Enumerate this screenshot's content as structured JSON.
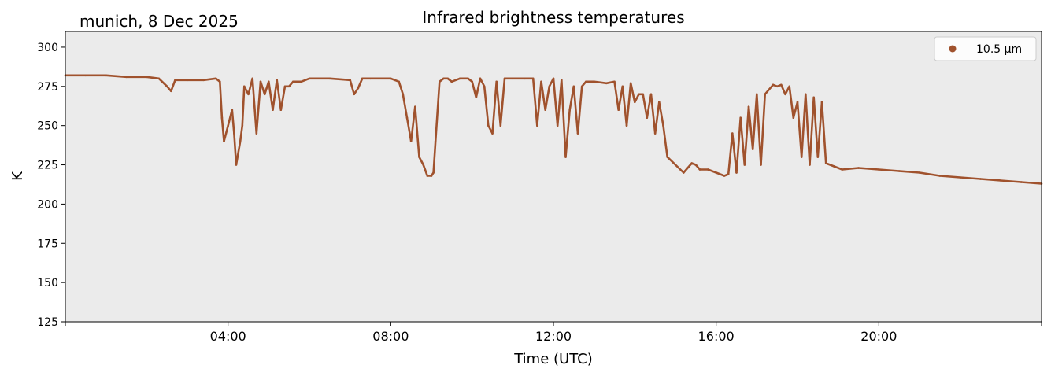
{
  "chart_data": {
    "type": "line",
    "title": "Infrared brightness temperatures",
    "location_label": "munich, 8 Dec 2025",
    "xlabel": "Time (UTC)",
    "ylabel": "K",
    "xlim_hours": [
      0,
      24
    ],
    "ylim": [
      125,
      310
    ],
    "yticks": [
      125,
      150,
      175,
      200,
      225,
      250,
      275,
      300
    ],
    "xticks": [
      {
        "hour": 4,
        "label": "04:00"
      },
      {
        "hour": 8,
        "label": "08:00"
      },
      {
        "hour": 12,
        "label": "12:00"
      },
      {
        "hour": 16,
        "label": "16:00"
      },
      {
        "hour": 20,
        "label": "20:00"
      }
    ],
    "legend_position": "top-right",
    "series": [
      {
        "name": "10.5 µm",
        "color": "#a0522d",
        "x_hours": [
          0,
          0.5,
          1.0,
          1.5,
          2.0,
          2.3,
          2.5,
          2.6,
          2.7,
          3.0,
          3.4,
          3.7,
          3.8,
          3.85,
          3.9,
          4.0,
          4.1,
          4.15,
          4.2,
          4.3,
          4.35,
          4.4,
          4.5,
          4.6,
          4.7,
          4.8,
          4.9,
          5.0,
          5.1,
          5.2,
          5.3,
          5.4,
          5.5,
          5.6,
          5.8,
          6.0,
          6.5,
          7.0,
          7.1,
          7.2,
          7.3,
          7.5,
          8.0,
          8.1,
          8.2,
          8.3,
          8.4,
          8.5,
          8.6,
          8.7,
          8.8,
          8.9,
          9.0,
          9.05,
          9.1,
          9.2,
          9.3,
          9.4,
          9.5,
          9.7,
          9.9,
          10.0,
          10.1,
          10.2,
          10.3,
          10.4,
          10.5,
          10.6,
          10.7,
          10.8,
          11.0,
          11.3,
          11.5,
          11.6,
          11.7,
          11.8,
          11.9,
          12.0,
          12.1,
          12.2,
          12.3,
          12.4,
          12.5,
          12.6,
          12.7,
          12.8,
          13.0,
          13.3,
          13.5,
          13.6,
          13.7,
          13.8,
          13.9,
          14.0,
          14.1,
          14.2,
          14.3,
          14.4,
          14.5,
          14.6,
          14.7,
          14.8,
          15.0,
          15.2,
          15.4,
          15.5,
          15.6,
          15.8,
          16.0,
          16.2,
          16.3,
          16.4,
          16.5,
          16.6,
          16.7,
          16.8,
          16.9,
          17.0,
          17.1,
          17.2,
          17.4,
          17.5,
          17.6,
          17.7,
          17.8,
          17.9,
          18.0,
          18.1,
          18.2,
          18.3,
          18.4,
          18.5,
          18.6,
          18.7,
          18.9,
          19.1,
          19.5,
          20.0,
          20.5,
          21.0,
          21.5,
          22.0,
          22.5,
          23.0,
          23.5,
          24.0
        ],
        "y_kelvin": [
          282,
          282,
          282,
          281,
          281,
          280,
          275,
          272,
          279,
          279,
          279,
          280,
          278,
          255,
          240,
          250,
          260,
          245,
          225,
          240,
          250,
          275,
          270,
          280,
          245,
          278,
          270,
          278,
          260,
          279,
          260,
          275,
          275,
          278,
          278,
          280,
          280,
          279,
          270,
          274,
          280,
          280,
          280,
          279,
          278,
          270,
          255,
          240,
          262,
          230,
          225,
          218,
          218,
          220,
          240,
          278,
          280,
          280,
          278,
          280,
          280,
          278,
          268,
          280,
          275,
          250,
          245,
          278,
          250,
          280,
          280,
          280,
          280,
          250,
          278,
          260,
          275,
          280,
          250,
          279,
          230,
          260,
          275,
          245,
          275,
          278,
          278,
          277,
          278,
          260,
          275,
          250,
          277,
          265,
          270,
          270,
          255,
          270,
          245,
          265,
          250,
          230,
          225,
          220,
          226,
          225,
          222,
          222,
          220,
          218,
          219,
          245,
          220,
          255,
          225,
          262,
          235,
          270,
          225,
          270,
          276,
          275,
          276,
          270,
          275,
          255,
          265,
          230,
          270,
          225,
          268,
          230,
          265,
          226,
          224,
          222,
          223,
          222,
          221,
          220,
          218,
          217,
          216,
          215,
          214,
          213
        ]
      }
    ]
  }
}
